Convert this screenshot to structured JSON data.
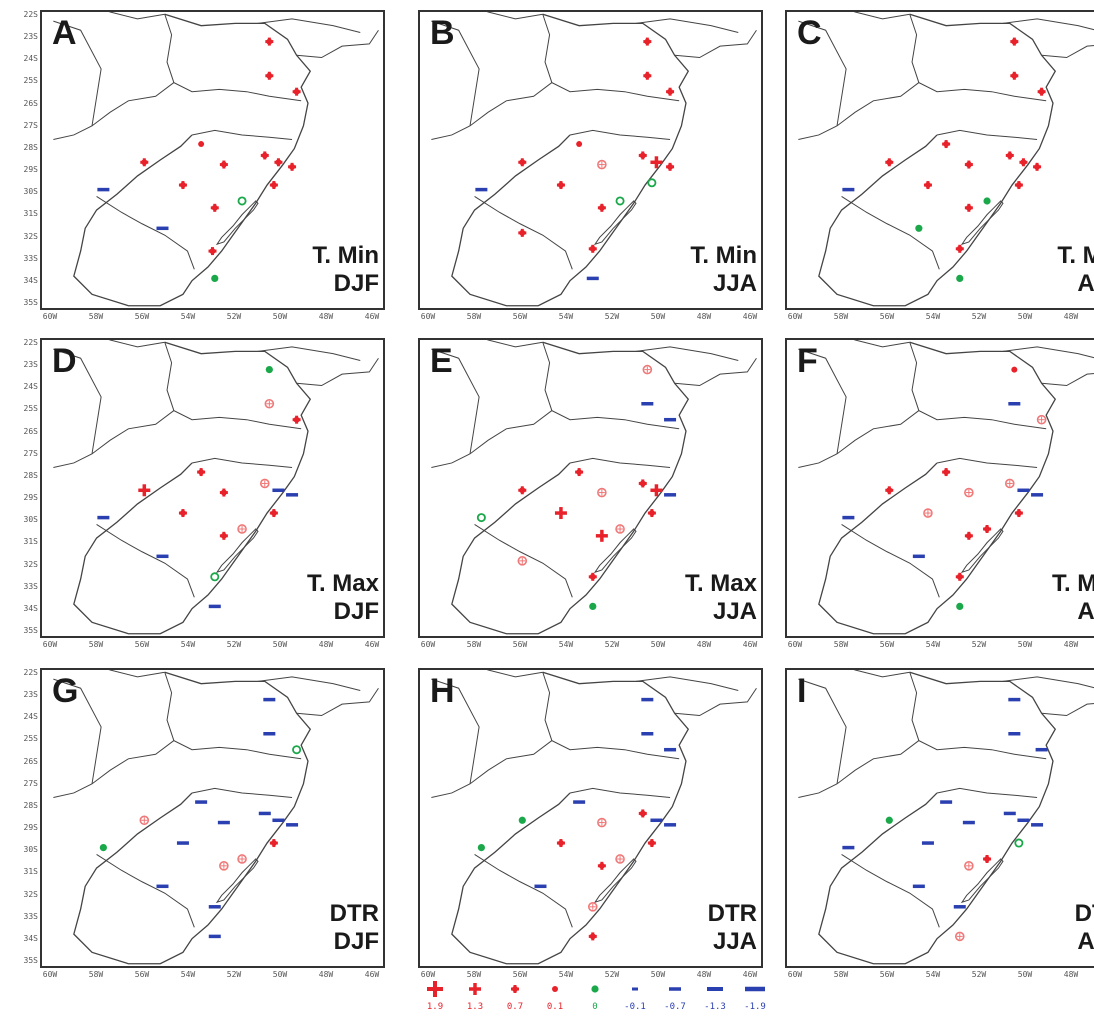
{
  "colors": {
    "red": "#e8222a",
    "light_red": "#f07878",
    "green": "#1aa84a",
    "blue": "#2a3fb0"
  },
  "axis": {
    "y_labels": [
      "22S",
      "23S",
      "24S",
      "25S",
      "26S",
      "27S",
      "28S",
      "29S",
      "30S",
      "31S",
      "32S",
      "33S",
      "34S",
      "35S"
    ],
    "x_labels": [
      "60W",
      "58W",
      "56W",
      "54W",
      "52W",
      "50W",
      "48W",
      "46W"
    ]
  },
  "panels": [
    {
      "id": "A",
      "line1": "T. Min",
      "line2": "DJF",
      "markers": [
        {
          "lon": 50.0,
          "lat": 23.3,
          "sym": "red-0.7"
        },
        {
          "lon": 50.0,
          "lat": 24.8,
          "sym": "red-0.7"
        },
        {
          "lon": 48.8,
          "lat": 25.5,
          "sym": "red-0.7"
        },
        {
          "lon": 53.0,
          "lat": 27.8,
          "sym": "red-0.1"
        },
        {
          "lon": 55.5,
          "lat": 28.6,
          "sym": "red-0.7"
        },
        {
          "lon": 52.0,
          "lat": 28.7,
          "sym": "red-0.7"
        },
        {
          "lon": 50.2,
          "lat": 28.3,
          "sym": "red-0.7"
        },
        {
          "lon": 49.6,
          "lat": 28.6,
          "sym": "red-0.7"
        },
        {
          "lon": 49.0,
          "lat": 28.8,
          "sym": "red-0.7"
        },
        {
          "lon": 53.8,
          "lat": 29.6,
          "sym": "red-0.7"
        },
        {
          "lon": 49.8,
          "lat": 29.6,
          "sym": "red-0.7"
        },
        {
          "lon": 51.2,
          "lat": 30.3,
          "sym": "green-hollow"
        },
        {
          "lon": 57.3,
          "lat": 29.8,
          "sym": "blue-0.7"
        },
        {
          "lon": 52.4,
          "lat": 30.6,
          "sym": "red-0.7"
        },
        {
          "lon": 54.7,
          "lat": 31.5,
          "sym": "blue-0.7"
        },
        {
          "lon": 52.5,
          "lat": 32.5,
          "sym": "red-0.7"
        },
        {
          "lon": 52.4,
          "lat": 33.7,
          "sym": "green-0"
        }
      ]
    },
    {
      "id": "B",
      "line1": "T. Min",
      "line2": "JJA",
      "markers": [
        {
          "lon": 50.0,
          "lat": 23.3,
          "sym": "red-0.7"
        },
        {
          "lon": 50.0,
          "lat": 24.8,
          "sym": "red-0.7"
        },
        {
          "lon": 49.0,
          "lat": 25.5,
          "sym": "red-0.7"
        },
        {
          "lon": 53.0,
          "lat": 27.8,
          "sym": "red-0.1"
        },
        {
          "lon": 55.5,
          "lat": 28.6,
          "sym": "red-0.7"
        },
        {
          "lon": 52.0,
          "lat": 28.7,
          "sym": "light-red"
        },
        {
          "lon": 50.2,
          "lat": 28.3,
          "sym": "red-0.7"
        },
        {
          "lon": 49.6,
          "lat": 28.6,
          "sym": "red-1.3"
        },
        {
          "lon": 49.0,
          "lat": 28.8,
          "sym": "red-0.7"
        },
        {
          "lon": 53.8,
          "lat": 29.6,
          "sym": "red-0.7"
        },
        {
          "lon": 49.8,
          "lat": 29.5,
          "sym": "green-hollow"
        },
        {
          "lon": 51.2,
          "lat": 30.3,
          "sym": "green-hollow"
        },
        {
          "lon": 57.3,
          "lat": 29.8,
          "sym": "blue-0.7"
        },
        {
          "lon": 52.0,
          "lat": 30.6,
          "sym": "red-0.7"
        },
        {
          "lon": 55.5,
          "lat": 31.7,
          "sym": "red-0.7"
        },
        {
          "lon": 52.4,
          "lat": 32.4,
          "sym": "red-0.7"
        },
        {
          "lon": 52.4,
          "lat": 33.7,
          "sym": "blue-0.7"
        }
      ]
    },
    {
      "id": "C",
      "line1": "T. Min",
      "line2": "Ann",
      "markers": [
        {
          "lon": 50.0,
          "lat": 23.3,
          "sym": "red-0.7"
        },
        {
          "lon": 50.0,
          "lat": 24.8,
          "sym": "red-0.7"
        },
        {
          "lon": 48.8,
          "lat": 25.5,
          "sym": "red-0.7"
        },
        {
          "lon": 53.0,
          "lat": 27.8,
          "sym": "red-0.7"
        },
        {
          "lon": 55.5,
          "lat": 28.6,
          "sym": "red-0.7"
        },
        {
          "lon": 52.0,
          "lat": 28.7,
          "sym": "red-0.7"
        },
        {
          "lon": 50.2,
          "lat": 28.3,
          "sym": "red-0.7"
        },
        {
          "lon": 49.6,
          "lat": 28.6,
          "sym": "red-0.7"
        },
        {
          "lon": 49.0,
          "lat": 28.8,
          "sym": "red-0.7"
        },
        {
          "lon": 53.8,
          "lat": 29.6,
          "sym": "red-0.7"
        },
        {
          "lon": 49.8,
          "lat": 29.6,
          "sym": "red-0.7"
        },
        {
          "lon": 51.2,
          "lat": 30.3,
          "sym": "green-0"
        },
        {
          "lon": 57.3,
          "lat": 29.8,
          "sym": "blue-0.7"
        },
        {
          "lon": 52.0,
          "lat": 30.6,
          "sym": "red-0.7"
        },
        {
          "lon": 54.2,
          "lat": 31.5,
          "sym": "green-0"
        },
        {
          "lon": 52.4,
          "lat": 32.4,
          "sym": "red-0.7"
        },
        {
          "lon": 52.4,
          "lat": 33.7,
          "sym": "green-0"
        }
      ]
    },
    {
      "id": "D",
      "line1": "T. Max",
      "line2": "DJF",
      "markers": [
        {
          "lon": 50.0,
          "lat": 23.3,
          "sym": "green-0"
        },
        {
          "lon": 50.0,
          "lat": 24.8,
          "sym": "light-red"
        },
        {
          "lon": 48.8,
          "lat": 25.5,
          "sym": "red-0.7"
        },
        {
          "lon": 53.0,
          "lat": 27.8,
          "sym": "red-0.7"
        },
        {
          "lon": 55.5,
          "lat": 28.6,
          "sym": "red-1.3"
        },
        {
          "lon": 52.0,
          "lat": 28.7,
          "sym": "red-0.7"
        },
        {
          "lon": 50.2,
          "lat": 28.3,
          "sym": "light-red"
        },
        {
          "lon": 49.6,
          "lat": 28.6,
          "sym": "blue-0.7"
        },
        {
          "lon": 49.0,
          "lat": 28.8,
          "sym": "blue-0.7"
        },
        {
          "lon": 53.8,
          "lat": 29.6,
          "sym": "red-0.7"
        },
        {
          "lon": 49.8,
          "lat": 29.6,
          "sym": "red-0.7"
        },
        {
          "lon": 51.2,
          "lat": 30.3,
          "sym": "light-red"
        },
        {
          "lon": 57.3,
          "lat": 29.8,
          "sym": "blue-0.7"
        },
        {
          "lon": 52.0,
          "lat": 30.6,
          "sym": "red-0.7"
        },
        {
          "lon": 54.7,
          "lat": 31.5,
          "sym": "blue-0.7"
        },
        {
          "lon": 52.4,
          "lat": 32.4,
          "sym": "green-hollow"
        },
        {
          "lon": 52.4,
          "lat": 33.7,
          "sym": "blue-0.7"
        }
      ]
    },
    {
      "id": "E",
      "line1": "T. Max",
      "line2": "JJA",
      "markers": [
        {
          "lon": 50.0,
          "lat": 23.3,
          "sym": "light-red"
        },
        {
          "lon": 50.0,
          "lat": 24.8,
          "sym": "blue-0.7"
        },
        {
          "lon": 49.0,
          "lat": 25.5,
          "sym": "blue-0.7"
        },
        {
          "lon": 53.0,
          "lat": 27.8,
          "sym": "red-0.7"
        },
        {
          "lon": 55.5,
          "lat": 28.6,
          "sym": "red-0.7"
        },
        {
          "lon": 52.0,
          "lat": 28.7,
          "sym": "light-red"
        },
        {
          "lon": 50.2,
          "lat": 28.3,
          "sym": "red-0.7"
        },
        {
          "lon": 49.6,
          "lat": 28.6,
          "sym": "red-1.3"
        },
        {
          "lon": 49.0,
          "lat": 28.8,
          "sym": "blue-0.7"
        },
        {
          "lon": 53.8,
          "lat": 29.6,
          "sym": "red-1.3"
        },
        {
          "lon": 49.8,
          "lat": 29.6,
          "sym": "red-0.7"
        },
        {
          "lon": 51.2,
          "lat": 30.3,
          "sym": "light-red"
        },
        {
          "lon": 57.3,
          "lat": 29.8,
          "sym": "green-hollow"
        },
        {
          "lon": 52.0,
          "lat": 30.6,
          "sym": "red-1.3"
        },
        {
          "lon": 55.5,
          "lat": 31.7,
          "sym": "light-red"
        },
        {
          "lon": 52.4,
          "lat": 32.4,
          "sym": "red-0.7"
        },
        {
          "lon": 52.4,
          "lat": 33.7,
          "sym": "green-0"
        }
      ]
    },
    {
      "id": "F",
      "line1": "T. Max",
      "line2": "Ann",
      "markers": [
        {
          "lon": 50.0,
          "lat": 23.3,
          "sym": "red-0.1"
        },
        {
          "lon": 50.0,
          "lat": 24.8,
          "sym": "blue-0.7"
        },
        {
          "lon": 48.8,
          "lat": 25.5,
          "sym": "light-red"
        },
        {
          "lon": 53.0,
          "lat": 27.8,
          "sym": "red-0.7"
        },
        {
          "lon": 55.5,
          "lat": 28.6,
          "sym": "red-0.7"
        },
        {
          "lon": 52.0,
          "lat": 28.7,
          "sym": "light-red"
        },
        {
          "lon": 50.2,
          "lat": 28.3,
          "sym": "light-red"
        },
        {
          "lon": 49.6,
          "lat": 28.6,
          "sym": "blue-0.7"
        },
        {
          "lon": 49.0,
          "lat": 28.8,
          "sym": "blue-0.7"
        },
        {
          "lon": 53.8,
          "lat": 29.6,
          "sym": "light-red"
        },
        {
          "lon": 49.8,
          "lat": 29.6,
          "sym": "red-0.7"
        },
        {
          "lon": 51.2,
          "lat": 30.3,
          "sym": "red-0.7"
        },
        {
          "lon": 57.3,
          "lat": 29.8,
          "sym": "blue-0.7"
        },
        {
          "lon": 52.0,
          "lat": 30.6,
          "sym": "red-0.7"
        },
        {
          "lon": 54.2,
          "lat": 31.5,
          "sym": "blue-0.7"
        },
        {
          "lon": 52.4,
          "lat": 32.4,
          "sym": "red-0.7"
        },
        {
          "lon": 52.4,
          "lat": 33.7,
          "sym": "green-0"
        }
      ]
    },
    {
      "id": "G",
      "line1": "DTR",
      "line2": "DJF",
      "markers": [
        {
          "lon": 50.0,
          "lat": 23.3,
          "sym": "blue-0.7"
        },
        {
          "lon": 50.0,
          "lat": 24.8,
          "sym": "blue-0.7"
        },
        {
          "lon": 48.8,
          "lat": 25.5,
          "sym": "green-hollow"
        },
        {
          "lon": 53.0,
          "lat": 27.8,
          "sym": "blue-0.7"
        },
        {
          "lon": 55.5,
          "lat": 28.6,
          "sym": "light-red"
        },
        {
          "lon": 52.0,
          "lat": 28.7,
          "sym": "blue-0.7"
        },
        {
          "lon": 50.2,
          "lat": 28.3,
          "sym": "blue-0.7"
        },
        {
          "lon": 49.6,
          "lat": 28.6,
          "sym": "blue-0.7"
        },
        {
          "lon": 49.0,
          "lat": 28.8,
          "sym": "blue-0.7"
        },
        {
          "lon": 53.8,
          "lat": 29.6,
          "sym": "blue-0.7"
        },
        {
          "lon": 49.8,
          "lat": 29.6,
          "sym": "red-0.7"
        },
        {
          "lon": 51.2,
          "lat": 30.3,
          "sym": "light-red"
        },
        {
          "lon": 57.3,
          "lat": 29.8,
          "sym": "green-0"
        },
        {
          "lon": 52.0,
          "lat": 30.6,
          "sym": "light-red"
        },
        {
          "lon": 54.7,
          "lat": 31.5,
          "sym": "blue-0.7"
        },
        {
          "lon": 52.4,
          "lat": 32.4,
          "sym": "blue-0.7"
        },
        {
          "lon": 52.4,
          "lat": 33.7,
          "sym": "blue-0.7"
        }
      ]
    },
    {
      "id": "H",
      "line1": "DTR",
      "line2": "JJA",
      "markers": [
        {
          "lon": 50.0,
          "lat": 23.3,
          "sym": "blue-0.7"
        },
        {
          "lon": 50.0,
          "lat": 24.8,
          "sym": "blue-0.7"
        },
        {
          "lon": 49.0,
          "lat": 25.5,
          "sym": "blue-0.7"
        },
        {
          "lon": 53.0,
          "lat": 27.8,
          "sym": "blue-0.7"
        },
        {
          "lon": 55.5,
          "lat": 28.6,
          "sym": "green-0"
        },
        {
          "lon": 52.0,
          "lat": 28.7,
          "sym": "light-red"
        },
        {
          "lon": 50.2,
          "lat": 28.3,
          "sym": "red-0.7"
        },
        {
          "lon": 49.6,
          "lat": 28.6,
          "sym": "blue-0.7"
        },
        {
          "lon": 49.0,
          "lat": 28.8,
          "sym": "blue-0.7"
        },
        {
          "lon": 53.8,
          "lat": 29.6,
          "sym": "red-0.7"
        },
        {
          "lon": 49.8,
          "lat": 29.6,
          "sym": "red-0.7"
        },
        {
          "lon": 51.2,
          "lat": 30.3,
          "sym": "light-red"
        },
        {
          "lon": 57.3,
          "lat": 29.8,
          "sym": "green-0"
        },
        {
          "lon": 52.0,
          "lat": 30.6,
          "sym": "red-0.7"
        },
        {
          "lon": 54.7,
          "lat": 31.5,
          "sym": "blue-0.7"
        },
        {
          "lon": 52.4,
          "lat": 32.4,
          "sym": "light-red"
        },
        {
          "lon": 52.4,
          "lat": 33.7,
          "sym": "red-0.7"
        }
      ]
    },
    {
      "id": "I",
      "line1": "DTR",
      "line2": "Ann",
      "markers": [
        {
          "lon": 50.0,
          "lat": 23.3,
          "sym": "blue-0.7"
        },
        {
          "lon": 50.0,
          "lat": 24.8,
          "sym": "blue-0.7"
        },
        {
          "lon": 48.8,
          "lat": 25.5,
          "sym": "blue-0.7"
        },
        {
          "lon": 53.0,
          "lat": 27.8,
          "sym": "blue-0.7"
        },
        {
          "lon": 55.5,
          "lat": 28.6,
          "sym": "green-0"
        },
        {
          "lon": 52.0,
          "lat": 28.7,
          "sym": "blue-0.7"
        },
        {
          "lon": 50.2,
          "lat": 28.3,
          "sym": "blue-0.7"
        },
        {
          "lon": 49.6,
          "lat": 28.6,
          "sym": "blue-0.7"
        },
        {
          "lon": 49.0,
          "lat": 28.8,
          "sym": "blue-0.7"
        },
        {
          "lon": 53.8,
          "lat": 29.6,
          "sym": "blue-0.7"
        },
        {
          "lon": 49.8,
          "lat": 29.6,
          "sym": "green-hollow"
        },
        {
          "lon": 51.2,
          "lat": 30.3,
          "sym": "red-0.7"
        },
        {
          "lon": 57.3,
          "lat": 29.8,
          "sym": "blue-0.7"
        },
        {
          "lon": 52.0,
          "lat": 30.6,
          "sym": "light-red"
        },
        {
          "lon": 54.2,
          "lat": 31.5,
          "sym": "blue-0.7"
        },
        {
          "lon": 52.4,
          "lat": 32.4,
          "sym": "blue-0.7"
        },
        {
          "lon": 52.4,
          "lat": 33.7,
          "sym": "light-red"
        }
      ]
    }
  ],
  "legend": [
    {
      "label": "1.9",
      "sym": "red-1.9"
    },
    {
      "label": "1.3",
      "sym": "red-1.3"
    },
    {
      "label": "0.7",
      "sym": "red-0.7"
    },
    {
      "label": "0.1",
      "sym": "red-0.1"
    },
    {
      "label": "0",
      "sym": "green-0"
    },
    {
      "label": "-0.1",
      "sym": "blue-0.1"
    },
    {
      "label": "-0.7",
      "sym": "blue-0.7"
    },
    {
      "label": "-1.3",
      "sym": "blue-1.3"
    },
    {
      "label": "-1.9",
      "sym": "blue-1.9"
    }
  ]
}
